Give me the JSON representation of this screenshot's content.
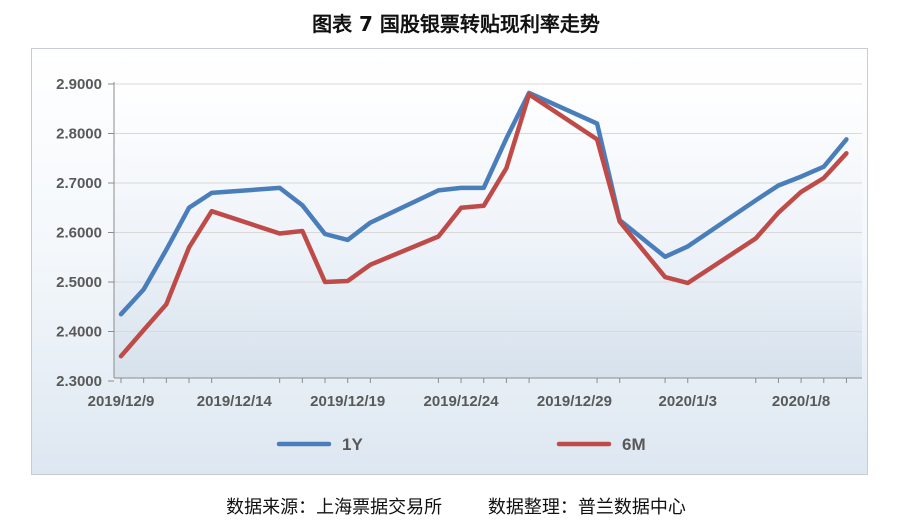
{
  "title": "图表 7  国股银票转贴现利率走势",
  "source": "数据来源：上海票据交易所        数据整理：普兰数据中心",
  "chart_data": {
    "type": "line",
    "x_tick_labels": [
      "2019/12/9",
      "2019/12/14",
      "2019/12/19",
      "2019/12/24",
      "2019/12/29",
      "2020/1/3",
      "2020/1/8"
    ],
    "y_tick_labels": [
      "2.3000",
      "2.4000",
      "2.5000",
      "2.6000",
      "2.7000",
      "2.8000",
      "2.9000"
    ],
    "ylim": [
      2.3,
      2.9
    ],
    "legend_position": "bottom",
    "x": [
      "2019/12/9",
      "2019/12/10",
      "2019/12/11",
      "2019/12/12",
      "2019/12/13",
      "2019/12/16",
      "2019/12/17",
      "2019/12/18",
      "2019/12/19",
      "2019/12/20",
      "2019/12/23",
      "2019/12/24",
      "2019/12/25",
      "2019/12/26",
      "2019/12/27",
      "2019/12/30",
      "2019/12/31",
      "2020/1/2",
      "2020/1/3",
      "2020/1/6",
      "2020/1/7",
      "2020/1/8",
      "2020/1/9",
      "2020/1/10"
    ],
    "series": [
      {
        "name": "1Y",
        "color": "#4a7ebb",
        "values": [
          2.435,
          2.485,
          2.565,
          2.65,
          2.68,
          2.69,
          2.655,
          2.597,
          2.585,
          2.62,
          2.685,
          2.69,
          2.69,
          2.79,
          2.882,
          2.82,
          2.625,
          2.551,
          2.572,
          2.665,
          2.695,
          2.713,
          2.733,
          2.788
        ]
      },
      {
        "name": "6M",
        "color": "#be4b48",
        "values": [
          2.35,
          2.403,
          2.455,
          2.57,
          2.643,
          2.598,
          2.603,
          2.5,
          2.502,
          2.535,
          2.592,
          2.65,
          2.654,
          2.73,
          2.879,
          2.788,
          2.622,
          2.51,
          2.498,
          2.588,
          2.64,
          2.682,
          2.71,
          2.76
        ]
      }
    ]
  }
}
